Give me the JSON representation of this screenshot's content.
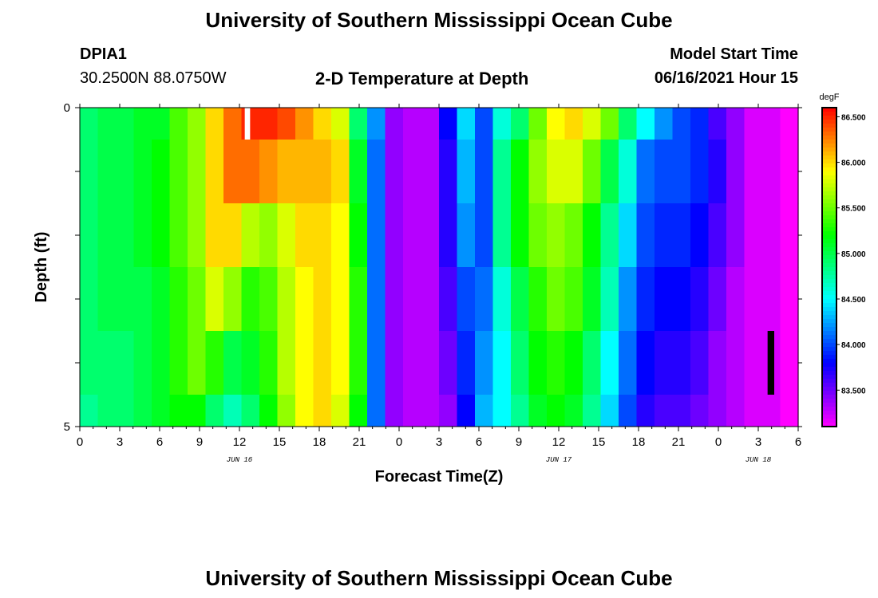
{
  "header": {
    "title_top": "University of Southern Mississippi Ocean Cube",
    "station": "DPIA1",
    "coords": "30.2500N  88.0750W",
    "plot_title": "2-D Temperature at Depth",
    "model_label": "Model Start Time",
    "model_time": "06/16/2021 Hour 15",
    "title_bottom": "University of Southern Mississippi Ocean Cube"
  },
  "chart_data": {
    "type": "heatmap",
    "title": "2-D Temperature at Depth",
    "xlabel": "Forecast Time(Z)",
    "ylabel": "Depth (ft)",
    "xlim": [
      0,
      54
    ],
    "ylim": [
      0,
      5
    ],
    "x_ticks": [
      0,
      3,
      6,
      9,
      12,
      15,
      18,
      21,
      24,
      27,
      30,
      33,
      36,
      39,
      42,
      45,
      48,
      51,
      54
    ],
    "x_tick_labels": [
      "0",
      "3",
      "6",
      "9",
      "12",
      "15",
      "18",
      "21",
      "0",
      "3",
      "6",
      "9",
      "12",
      "15",
      "18",
      "21",
      "0",
      "3",
      "6"
    ],
    "y_tick_labels": [
      "0",
      "5"
    ],
    "date_labels": [
      {
        "x": 12,
        "label": "JUN 16"
      },
      {
        "x": 36,
        "label": "JUN 17"
      },
      {
        "x": 51,
        "label": "JUN 18"
      }
    ],
    "colorbar": {
      "unit": "degF",
      "min": 83.1,
      "max": 86.6,
      "ticks": [
        "86.500",
        "86.000",
        "85.500",
        "85.000",
        "84.500",
        "84.000",
        "83.500"
      ]
    },
    "layers": [
      {
        "depth": [
          0,
          0.5
        ],
        "values": [
          84.9,
          85.0,
          85.0,
          85.1,
          85.1,
          85.4,
          85.6,
          86.0,
          86.3,
          86.5,
          86.5,
          86.4,
          86.2,
          86.0,
          85.8,
          84.9,
          84.2,
          83.4,
          83.3,
          83.3,
          83.8,
          84.4,
          84.0,
          84.6,
          84.9,
          85.5,
          85.9,
          86.0,
          85.8,
          85.5,
          84.9,
          84.5,
          84.2,
          84.0,
          83.9,
          83.6,
          83.4,
          83.2,
          83.2,
          83.1
        ]
      },
      {
        "depth": [
          0.5,
          1.5
        ],
        "values": [
          84.9,
          85.0,
          85.0,
          85.1,
          85.2,
          85.4,
          85.6,
          86.0,
          86.3,
          86.3,
          86.2,
          86.1,
          86.1,
          86.1,
          86.0,
          85.1,
          84.1,
          83.4,
          83.3,
          83.3,
          83.7,
          84.3,
          84.0,
          84.8,
          85.2,
          85.6,
          85.8,
          85.8,
          85.5,
          85.0,
          84.6,
          84.1,
          84.0,
          84.0,
          83.9,
          83.7,
          83.4,
          83.2,
          83.2,
          83.1
        ]
      },
      {
        "depth": [
          1.5,
          2.5
        ],
        "values": [
          84.9,
          85.0,
          85.0,
          85.1,
          85.2,
          85.4,
          85.6,
          86.0,
          86.0,
          85.7,
          85.6,
          85.8,
          86.0,
          86.0,
          85.9,
          85.2,
          84.1,
          83.4,
          83.3,
          83.3,
          83.7,
          84.2,
          84.0,
          84.8,
          85.2,
          85.5,
          85.6,
          85.5,
          85.2,
          84.8,
          84.4,
          84.0,
          83.9,
          83.9,
          83.8,
          83.6,
          83.4,
          83.2,
          83.2,
          83.1
        ]
      },
      {
        "depth": [
          2.5,
          3.5
        ],
        "values": [
          84.9,
          85.0,
          85.0,
          85.0,
          85.1,
          85.3,
          85.5,
          85.8,
          85.6,
          85.3,
          85.4,
          85.7,
          85.9,
          86.0,
          85.9,
          85.3,
          84.1,
          83.4,
          83.3,
          83.3,
          83.6,
          84.0,
          84.1,
          84.6,
          85.0,
          85.3,
          85.5,
          85.4,
          85.1,
          84.7,
          84.2,
          83.9,
          83.8,
          83.8,
          83.7,
          83.5,
          83.3,
          83.2,
          83.2,
          83.1
        ]
      },
      {
        "depth": [
          3.5,
          4.5
        ],
        "values": [
          84.9,
          84.9,
          84.9,
          85.0,
          85.1,
          85.3,
          85.5,
          85.3,
          85.0,
          85.1,
          85.3,
          85.7,
          85.9,
          86.0,
          85.9,
          85.3,
          84.1,
          83.4,
          83.3,
          83.3,
          83.5,
          83.9,
          84.2,
          84.5,
          84.9,
          85.2,
          85.3,
          85.2,
          84.9,
          84.5,
          84.1,
          83.8,
          83.7,
          83.7,
          83.6,
          83.4,
          83.3,
          83.2,
          83.2,
          83.1
        ]
      },
      {
        "depth": [
          4.5,
          5
        ],
        "values": [
          84.8,
          84.9,
          84.9,
          85.0,
          85.1,
          85.2,
          85.2,
          84.9,
          84.7,
          84.9,
          85.2,
          85.6,
          85.9,
          86.0,
          85.8,
          85.2,
          84.1,
          83.4,
          83.3,
          83.3,
          83.4,
          83.8,
          84.3,
          84.5,
          84.8,
          85.1,
          85.2,
          85.1,
          84.8,
          84.4,
          84.0,
          83.7,
          83.6,
          83.6,
          83.5,
          83.4,
          83.3,
          83.2,
          83.2,
          83.1
        ]
      }
    ],
    "markers": [
      {
        "type": "missing-data",
        "x": [
          12.4,
          12.8
        ],
        "depth": [
          0,
          0.5
        ]
      },
      {
        "type": "missing-data",
        "x": [
          51.7,
          52.2
        ],
        "depth": [
          3.5,
          4.5
        ]
      }
    ]
  }
}
